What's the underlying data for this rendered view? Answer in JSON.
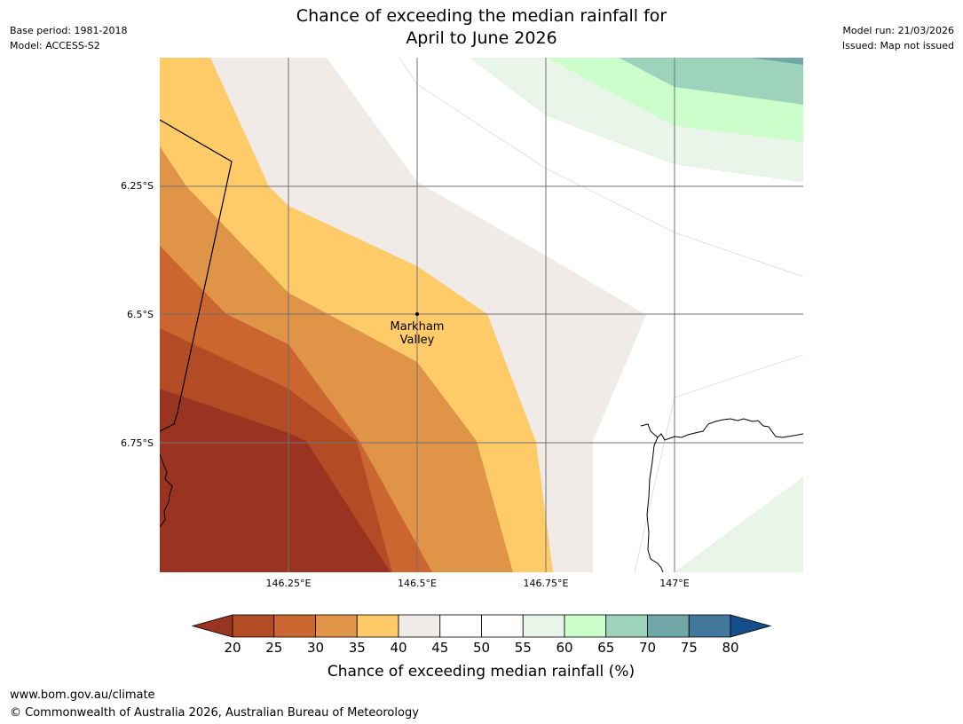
{
  "title": {
    "line1": "Chance of exceeding the median rainfall for",
    "line2": "April to June 2026"
  },
  "meta_left": {
    "base_period": "Base period: 1981-2018",
    "model": "Model: ACCESS-S2"
  },
  "meta_right": {
    "model_run": "Model run: 21/03/2026",
    "issued": "Issued: Map not issued"
  },
  "map": {
    "lat_labels": [
      "6.25°S",
      "6.5°S",
      "6.75°S"
    ],
    "lon_labels": [
      "146.25°E",
      "146.5°E",
      "146.75°E",
      "147°E"
    ],
    "place": {
      "line1": "Markham",
      "line2": "Valley"
    }
  },
  "colorbar": {
    "ticks": [
      "20",
      "25",
      "30",
      "35",
      "40",
      "45",
      "50",
      "55",
      "60",
      "65",
      "70",
      "75",
      "80"
    ],
    "colors": [
      "#993420",
      "#b34b24",
      "#cc6631",
      "#e09448",
      "#fecb68",
      "#f0ebe6",
      "#ffffff",
      "#ffffff",
      "#eaf5ea",
      "#ccfecc",
      "#9ed3bb",
      "#6fa6a6",
      "#42789b",
      "#134d8a"
    ],
    "label": "Chance of exceeding median rainfall (%)"
  },
  "footer": {
    "url": "www.bom.gov.au/climate",
    "copyright": "© Commonwealth of Australia 2026, Australian Bureau of Meteorology"
  }
}
